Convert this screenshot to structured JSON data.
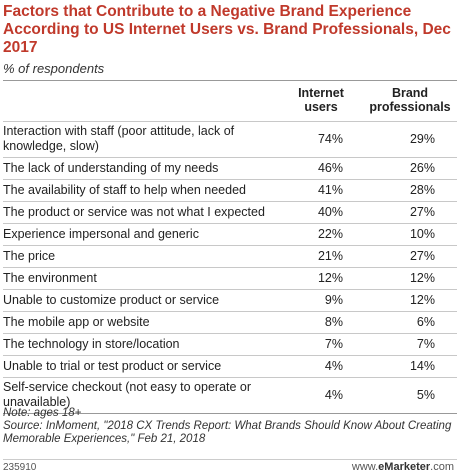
{
  "chart_data": {
    "type": "table",
    "title": "Factors that Contribute to a Negative Brand Experience According to US Internet Users vs. Brand Professionals, Dec 2017",
    "subtitle": "% of respondents",
    "columns": [
      "Internet users",
      "Brand professionals"
    ],
    "rows": [
      {
        "label": "Interaction with staff (poor attitude, lack of knowledge, slow)",
        "values": [
          "74%",
          "29%"
        ]
      },
      {
        "label": "The lack of understanding of my needs",
        "values": [
          "46%",
          "26%"
        ]
      },
      {
        "label": "The availability of staff to help when needed",
        "values": [
          "41%",
          "28%"
        ]
      },
      {
        "label": "The product or service was not what I expected",
        "values": [
          "40%",
          "27%"
        ]
      },
      {
        "label": "Experience impersonal and generic",
        "values": [
          "22%",
          "10%"
        ]
      },
      {
        "label": "The price",
        "values": [
          "21%",
          "27%"
        ]
      },
      {
        "label": "The environment",
        "values": [
          "12%",
          "12%"
        ]
      },
      {
        "label": "Unable to customize product or service",
        "values": [
          "9%",
          "12%"
        ]
      },
      {
        "label": "The mobile app or website",
        "values": [
          "8%",
          "6%"
        ]
      },
      {
        "label": "The technology in store/location",
        "values": [
          "7%",
          "7%"
        ]
      },
      {
        "label": "Unable to trial or test product or service",
        "values": [
          "4%",
          "14%"
        ]
      },
      {
        "label": "Self-service checkout (not easy to operate or unavailable)",
        "values": [
          "4%",
          "5%"
        ]
      }
    ],
    "note": "Note: ages 18+",
    "source": "Source: InMoment, \"2018 CX Trends Report: What Brands Should Know About Creating Memorable Experiences,\" Feb 21, 2018"
  },
  "footer": {
    "id": "235910",
    "brand_prefix": "www.",
    "brand_name": "eMarketer",
    "brand_suffix": ".com"
  },
  "colors": {
    "title": "#c0392b",
    "rule": "#999999"
  }
}
